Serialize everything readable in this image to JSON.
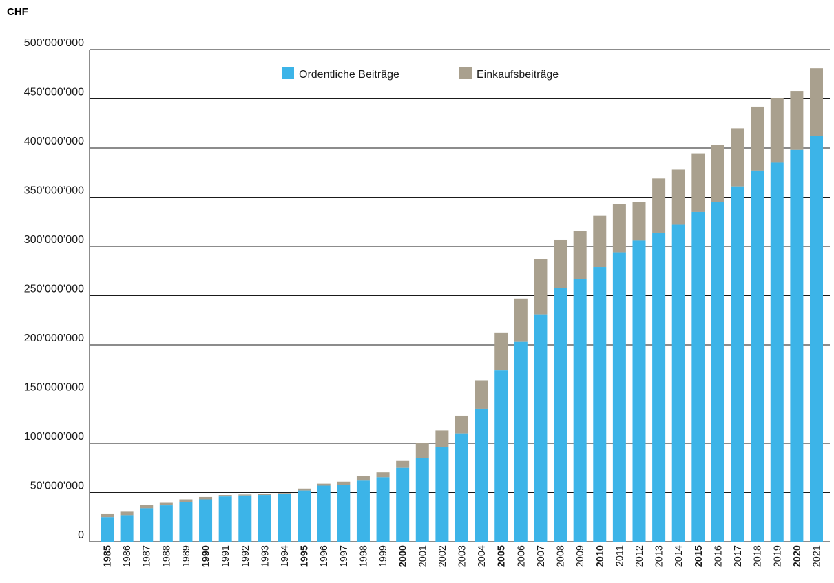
{
  "chart_data": {
    "type": "bar",
    "stacked": true,
    "unit_label": "CHF",
    "categories": [
      "1985",
      "1986",
      "1987",
      "1988",
      "1989",
      "1990",
      "1991",
      "1992",
      "1993",
      "1994",
      "1995",
      "1996",
      "1997",
      "1998",
      "1999",
      "2000",
      "2001",
      "2002",
      "2003",
      "2004",
      "2005",
      "2006",
      "2007",
      "2008",
      "2009",
      "2010",
      "2011",
      "2012",
      "2013",
      "2014",
      "2015",
      "2016",
      "2017",
      "2018",
      "2019",
      "2020",
      "2021"
    ],
    "bold_categories": [
      "1985",
      "1990",
      "1995",
      "2000",
      "2005",
      "2010",
      "2015",
      "2020"
    ],
    "series": [
      {
        "name": "Ordentliche Beiträge",
        "color": "#3cb4e8",
        "values": [
          25000000,
          27000000,
          34000000,
          37000000,
          40000000,
          43000000,
          46000000,
          47000000,
          47500000,
          48500000,
          52000000,
          57000000,
          58000000,
          62000000,
          65500000,
          75000000,
          85000000,
          96000000,
          110000000,
          135000000,
          174000000,
          203000000,
          231000000,
          258000000,
          267000000,
          279000000,
          294000000,
          306000000,
          314000000,
          322000000,
          335000000,
          345000000,
          361000000,
          377000000,
          385000000,
          398000000,
          412000000
        ]
      },
      {
        "name": "Einkaufsbeiträge",
        "color": "#a9a08e",
        "values": [
          3000000,
          3500000,
          3500000,
          2500000,
          3000000,
          2500000,
          1500000,
          1000000,
          1000000,
          1000000,
          2000000,
          2000000,
          3000000,
          4500000,
          5000000,
          7000000,
          15000000,
          17000000,
          18000000,
          29000000,
          38000000,
          44000000,
          56000000,
          49000000,
          49000000,
          52000000,
          49000000,
          39000000,
          55000000,
          56000000,
          59000000,
          58000000,
          59000000,
          65000000,
          66000000,
          60000000,
          69000000
        ]
      }
    ],
    "y_ticks": [
      "0",
      "50’000’000",
      "100’000’000",
      "150’000’000",
      "200’000’000",
      "250’000’000",
      "300’000’000",
      "350’000’000",
      "400’000’000",
      "450’000’000",
      "500’000’000"
    ],
    "ylim": [
      0,
      500000000
    ],
    "grid": true,
    "legend_position": "top"
  }
}
